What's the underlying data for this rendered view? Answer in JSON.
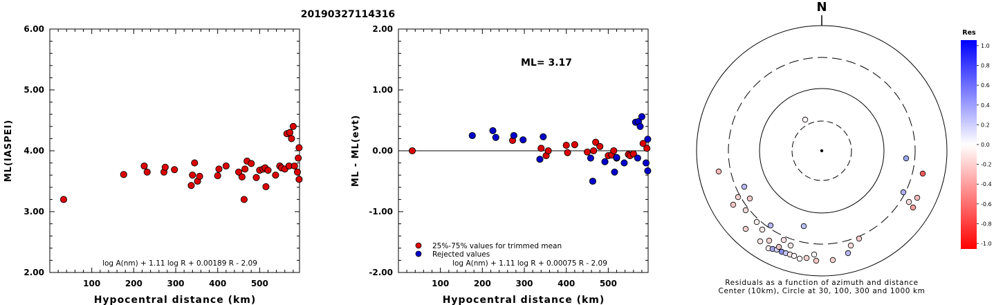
{
  "title": "20190327114316",
  "chart_data": [
    {
      "type": "scatter",
      "ylabel": "ML(IASPEI)",
      "xlabel": "Hypocentral distance (km)",
      "xlim": [
        0,
        595
      ],
      "ylim": [
        2.0,
        6.0
      ],
      "x_ticks": [
        "100",
        "200",
        "300",
        "400",
        "500"
      ],
      "y_ticks": [
        "2.00",
        "3.00",
        "4.00",
        "5.00",
        "6.00"
      ],
      "formula": "log A(nm) + 1.11 log R + 0.00189 R - 2.09",
      "color": "#dd0000",
      "points": [
        [
          33,
          3.2
        ],
        [
          176,
          3.61
        ],
        [
          225,
          3.75
        ],
        [
          232,
          3.65
        ],
        [
          272,
          3.65
        ],
        [
          275,
          3.73
        ],
        [
          297,
          3.69
        ],
        [
          337,
          3.43
        ],
        [
          340,
          3.6
        ],
        [
          345,
          3.8
        ],
        [
          352,
          3.5
        ],
        [
          357,
          3.58
        ],
        [
          400,
          3.59
        ],
        [
          403,
          3.7
        ],
        [
          420,
          3.75
        ],
        [
          450,
          3.65
        ],
        [
          458,
          3.57
        ],
        [
          463,
          3.2
        ],
        [
          465,
          3.7
        ],
        [
          470,
          3.83
        ],
        [
          480,
          3.79
        ],
        [
          492,
          3.56
        ],
        [
          500,
          3.68
        ],
        [
          508,
          3.7
        ],
        [
          513,
          3.72
        ],
        [
          515,
          3.41
        ],
        [
          520,
          3.68
        ],
        [
          538,
          3.6
        ],
        [
          548,
          3.75
        ],
        [
          552,
          3.72
        ],
        [
          560,
          3.7
        ],
        [
          565,
          4.28
        ],
        [
          570,
          3.75
        ],
        [
          572,
          4.3
        ],
        [
          576,
          4.2
        ],
        [
          580,
          4.4
        ],
        [
          583,
          3.75
        ],
        [
          590,
          3.65
        ],
        [
          592,
          3.88
        ],
        [
          594,
          4.05
        ],
        [
          594,
          3.53
        ]
      ]
    },
    {
      "type": "scatter",
      "ylabel": "ML - ML(evt)",
      "xlabel": "Hypocentral distance (km)",
      "xlim": [
        0,
        595
      ],
      "ylim": [
        -2.0,
        2.0
      ],
      "x_ticks": [
        "100",
        "200",
        "300",
        "400",
        "500"
      ],
      "y_ticks": [
        "-2.00",
        "-1.00",
        "0.00",
        "1.00",
        "2.00"
      ],
      "annotation": "ML= 3.17",
      "formula": "log A(nm) + 1.11 log R + 0.00075 R - 2.09",
      "legend": [
        "25%-75% values for trimmed mean",
        "Rejected values"
      ],
      "colors": [
        "#dd0000",
        "#0000cc"
      ],
      "zero_line": true,
      "series": [
        {
          "name": "25%-75% values for trimmed mean",
          "points": [
            [
              33,
              0.0
            ],
            [
              272,
              0.17
            ],
            [
              340,
              0.04
            ],
            [
              352,
              -0.08
            ],
            [
              357,
              0.0
            ],
            [
              400,
              0.09
            ],
            [
              403,
              -0.03
            ],
            [
              420,
              0.1
            ],
            [
              450,
              -0.02
            ],
            [
              465,
              0.0
            ],
            [
              470,
              0.14
            ],
            [
              480,
              0.07
            ],
            [
              500,
              -0.08
            ],
            [
              508,
              -0.07
            ],
            [
              513,
              0.0
            ],
            [
              520,
              -0.12
            ],
            [
              548,
              -0.06
            ],
            [
              552,
              -0.08
            ],
            [
              560,
              -0.05
            ],
            [
              583,
              0.12
            ],
            [
              592,
              0.04
            ]
          ]
        },
        {
          "name": "Rejected values",
          "points": [
            [
              176,
              0.25
            ],
            [
              225,
              0.33
            ],
            [
              232,
              0.22
            ],
            [
              275,
              0.25
            ],
            [
              297,
              0.18
            ],
            [
              337,
              -0.14
            ],
            [
              345,
              0.23
            ],
            [
              458,
              -0.12
            ],
            [
              463,
              -0.5
            ],
            [
              492,
              -0.18
            ],
            [
              515,
              -0.35
            ],
            [
              520,
              -0.11
            ],
            [
              538,
              -0.2
            ],
            [
              565,
              0.47
            ],
            [
              570,
              -0.12
            ],
            [
              572,
              0.48
            ],
            [
              576,
              0.4
            ],
            [
              580,
              0.56
            ],
            [
              590,
              -0.2
            ],
            [
              594,
              0.19
            ],
            [
              594,
              -0.33
            ]
          ]
        }
      ]
    }
  ],
  "polar": {
    "north_label": "N",
    "caption_line1": "Residuals as a function of azimuth and distance",
    "caption_line2": "Center (10km), Circle at 30, 100, 300 and 1000 km",
    "colorbar_title": "Res",
    "colorbar_ticks": [
      "1.0",
      "0.8",
      "0.6",
      "0.4",
      "0.2",
      "0.0",
      "-0.2",
      "-0.4",
      "-0.6",
      "-0.8",
      "-1.0"
    ]
  }
}
